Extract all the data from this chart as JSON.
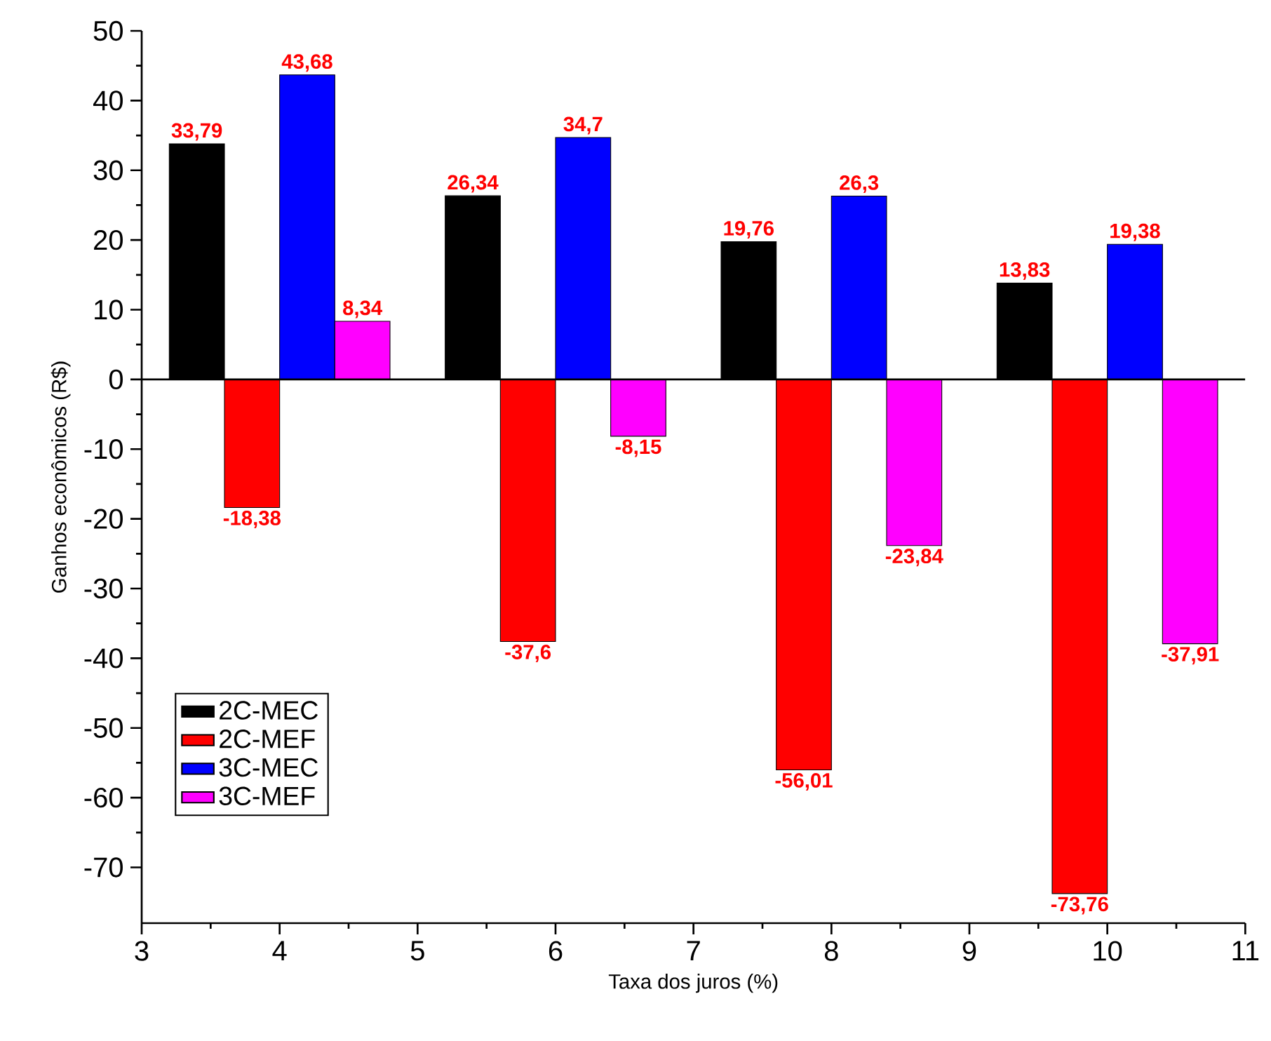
{
  "chart_data": {
    "type": "bar",
    "xlabel": "Taxa dos juros (%)",
    "ylabel": "Ganhos econômicos (R$)",
    "x": [
      4,
      6,
      8,
      10
    ],
    "series": [
      {
        "name": "2C-MEC",
        "color": "#000000",
        "values": [
          33.79,
          26.34,
          19.76,
          13.83
        ],
        "value_labels": [
          "33,79",
          "26,34",
          "19,76",
          "13,83"
        ]
      },
      {
        "name": "2C-MEF",
        "color": "#ff0000",
        "values": [
          -18.38,
          -37.6,
          -56.01,
          -73.76
        ],
        "value_labels": [
          "-18,38",
          "-37,6",
          "-56,01",
          "-73,76"
        ]
      },
      {
        "name": "3C-MEC",
        "color": "#0000ff",
        "values": [
          43.68,
          34.7,
          26.3,
          19.38
        ],
        "value_labels": [
          "43,68",
          "34,7",
          "26,3",
          "19,38"
        ]
      },
      {
        "name": "3C-MEF",
        "color": "#ff00ff",
        "values": [
          8.34,
          -8.15,
          -23.84,
          -37.91
        ],
        "value_labels": [
          "8,34",
          "-8,15",
          "-23,84",
          "-37,91"
        ]
      }
    ],
    "xlim": [
      3,
      11
    ],
    "ylim": [
      -78,
      50
    ],
    "xticks": [
      3,
      4,
      5,
      6,
      7,
      8,
      9,
      10,
      11
    ],
    "yticks": [
      -70,
      -60,
      -50,
      -40,
      -30,
      -20,
      -10,
      0,
      10,
      20,
      30,
      40,
      50
    ],
    "ref_lines": [
      {
        "axis": "y",
        "value": 0,
        "color": "#000000"
      }
    ],
    "legend": "bottom left",
    "grid": false
  }
}
